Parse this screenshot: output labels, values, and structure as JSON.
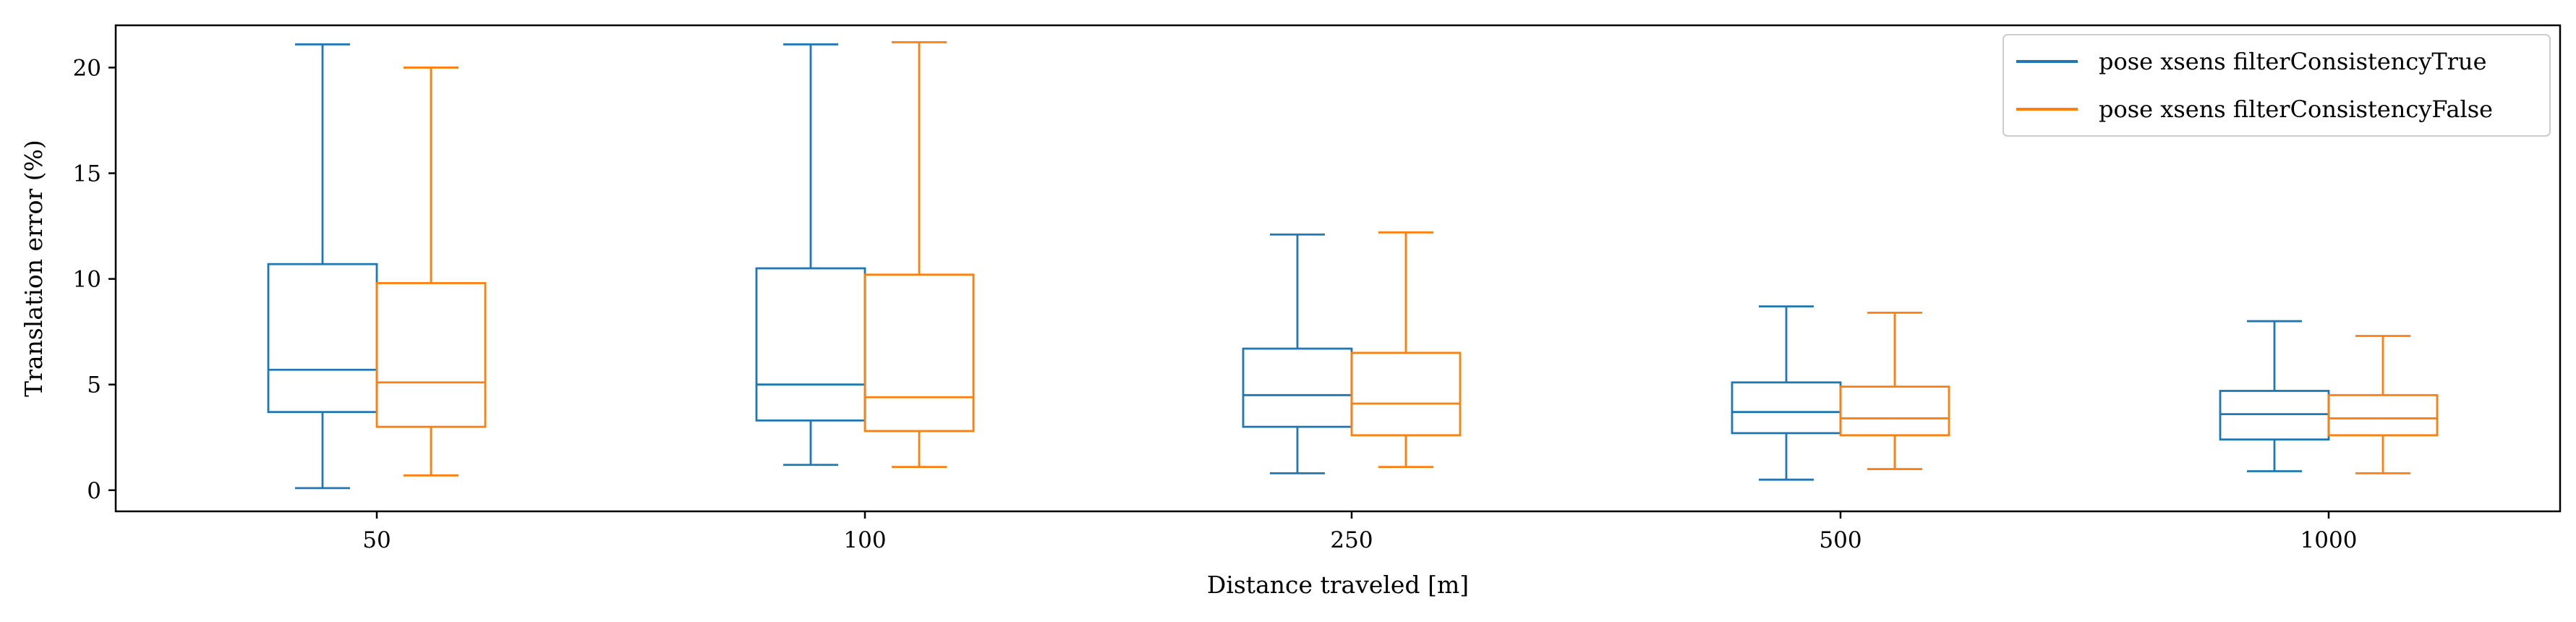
{
  "chart_data": {
    "type": "box",
    "title": "",
    "xlabel": "Distance traveled [m]",
    "ylabel": "Translation error (%)",
    "categories": [
      "50",
      "100",
      "250",
      "500",
      "1000"
    ],
    "ylim": [
      -1,
      22
    ],
    "yticks": [
      0,
      5,
      10,
      15,
      20
    ],
    "grid": false,
    "legend_position": "top-right",
    "series": [
      {
        "name": "pose xsens filterConsistencyTrue",
        "color": "#1f77b4",
        "boxes": [
          {
            "whisker_low": 0.1,
            "q1": 3.7,
            "median": 5.7,
            "q3": 10.7,
            "whisker_high": 21.1
          },
          {
            "whisker_low": 1.2,
            "q1": 3.3,
            "median": 5.0,
            "q3": 10.5,
            "whisker_high": 21.1
          },
          {
            "whisker_low": 0.8,
            "q1": 3.0,
            "median": 4.5,
            "q3": 6.7,
            "whisker_high": 12.1
          },
          {
            "whisker_low": 0.5,
            "q1": 2.7,
            "median": 3.7,
            "q3": 5.1,
            "whisker_high": 8.7
          },
          {
            "whisker_low": 0.9,
            "q1": 2.4,
            "median": 3.6,
            "q3": 4.7,
            "whisker_high": 8.0
          }
        ]
      },
      {
        "name": "pose xsens filterConsistencyFalse",
        "color": "#ff7f0e",
        "boxes": [
          {
            "whisker_low": 0.7,
            "q1": 3.0,
            "median": 5.1,
            "q3": 9.8,
            "whisker_high": 20.0
          },
          {
            "whisker_low": 1.1,
            "q1": 2.8,
            "median": 4.4,
            "q3": 10.2,
            "whisker_high": 21.2
          },
          {
            "whisker_low": 1.1,
            "q1": 2.6,
            "median": 4.1,
            "q3": 6.5,
            "whisker_high": 12.2
          },
          {
            "whisker_low": 1.0,
            "q1": 2.6,
            "median": 3.4,
            "q3": 4.9,
            "whisker_high": 8.4
          },
          {
            "whisker_low": 0.8,
            "q1": 2.6,
            "median": 3.4,
            "q3": 4.5,
            "whisker_high": 7.3
          }
        ]
      }
    ]
  }
}
